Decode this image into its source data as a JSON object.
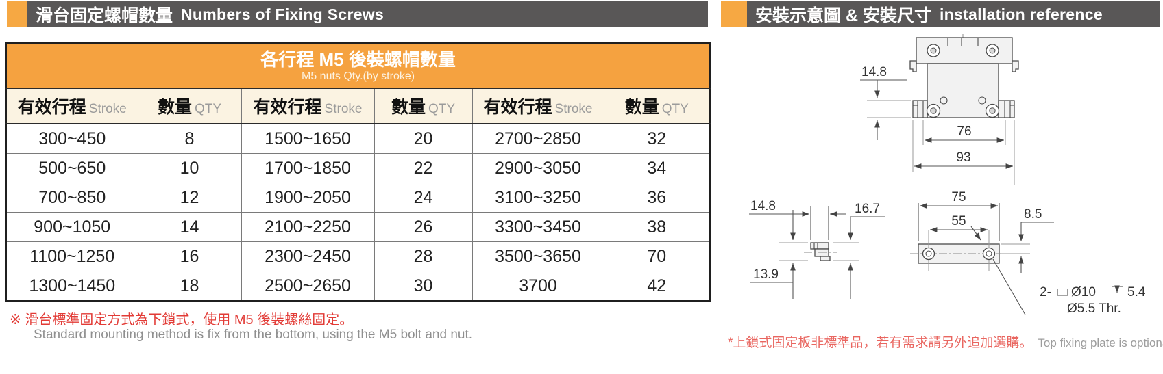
{
  "colors": {
    "orange": "#F6A843",
    "header_bar_gray": "#595757",
    "table_header_orange": "#F5A240",
    "cream": "#FBF3E2",
    "red_note": "#E23B36",
    "red_note_light": "#E96660",
    "gray_note": "#8F8F8F"
  },
  "left_section": {
    "header": {
      "title_zh": "滑台固定螺帽數量",
      "title_en": "Numbers of Fixing Screws"
    },
    "table": {
      "title_zh": "各行程 M5 後裝螺帽數量",
      "subtitle_en": "M5 nuts Qty.(by stroke)",
      "col_headers": [
        {
          "zh": "有效行程",
          "en": "Stroke"
        },
        {
          "zh": "數量",
          "en": "QTY"
        },
        {
          "zh": "有效行程",
          "en": "Stroke"
        },
        {
          "zh": "數量",
          "en": "QTY"
        },
        {
          "zh": "有效行程",
          "en": "Stroke"
        },
        {
          "zh": "數量",
          "en": "QTY"
        }
      ],
      "rows": [
        [
          "300~450",
          "8",
          "1500~1650",
          "20",
          "2700~2850",
          "32"
        ],
        [
          "500~650",
          "10",
          "1700~1850",
          "22",
          "2900~3050",
          "34"
        ],
        [
          "700~850",
          "12",
          "1900~2050",
          "24",
          "3100~3250",
          "36"
        ],
        [
          "900~1050",
          "14",
          "2100~2250",
          "26",
          "3300~3450",
          "38"
        ],
        [
          "1100~1250",
          "16",
          "2300~2450",
          "28",
          "3500~3650",
          "70"
        ],
        [
          "1300~1450",
          "18",
          "2500~2650",
          "30",
          "3700",
          "42"
        ]
      ]
    },
    "footnote": {
      "zh": "※ 滑台標準固定方式為下鎖式，使用 M5 後裝螺絲固定。",
      "en": "Standard mounting method is fix from the bottom, using the M5 bolt and nut."
    }
  },
  "right_section": {
    "header": {
      "title_zh": "安裝示意圖 & 安裝尺寸",
      "title_en": "installation reference"
    },
    "drawing": {
      "front_view": {
        "flange_height": "14.8",
        "inner_width": "76",
        "outer_width": "93"
      },
      "clamp_view": {
        "width": "14.8",
        "height_right": "16.7",
        "height_left": "13.9"
      },
      "plate_view": {
        "length": "75",
        "hole_pitch": "55",
        "center_offset": "8.5",
        "callout": {
          "prefix": "2-",
          "counterbore_dia": "Ø10",
          "counterbore_depth": "5.4",
          "thru_hole": "Ø5.5 Thr."
        }
      }
    },
    "footnote": {
      "zh": "*上鎖式固定板非標準品，若有需求請另外追加選購。",
      "en": "Top fixing plate is optional."
    }
  }
}
